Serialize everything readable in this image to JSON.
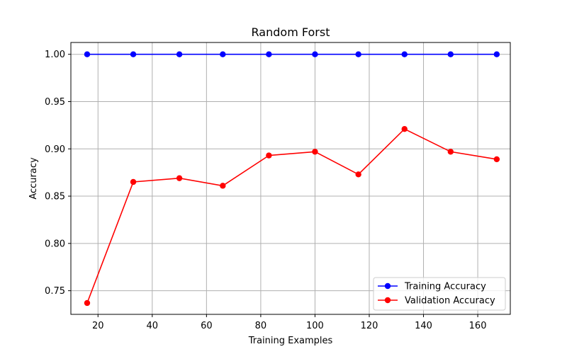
{
  "chart_data": {
    "type": "line",
    "title": "Random Forst",
    "xlabel": "Training Examples",
    "ylabel": "Accuracy",
    "xlim": [
      10,
      172
    ],
    "ylim": [
      0.725,
      1.0125
    ],
    "xticks": [
      20,
      40,
      60,
      80,
      100,
      120,
      140,
      160
    ],
    "yticks": [
      0.75,
      0.8,
      0.85,
      0.9,
      0.95,
      1.0
    ],
    "grid": true,
    "legend_position": "bottom-right",
    "x": [
      16,
      33,
      50,
      66,
      83,
      100,
      116,
      133,
      150,
      167
    ],
    "series": [
      {
        "name": "Training Accuracy",
        "color": "#0000ff",
        "marker": "circle",
        "values": [
          1.0,
          1.0,
          1.0,
          1.0,
          1.0,
          1.0,
          1.0,
          1.0,
          1.0,
          1.0
        ]
      },
      {
        "name": "Validation Accuracy",
        "color": "#ff0000",
        "marker": "circle",
        "values": [
          0.737,
          0.865,
          0.869,
          0.861,
          0.893,
          0.897,
          0.873,
          0.921,
          0.897,
          0.889
        ]
      }
    ]
  }
}
